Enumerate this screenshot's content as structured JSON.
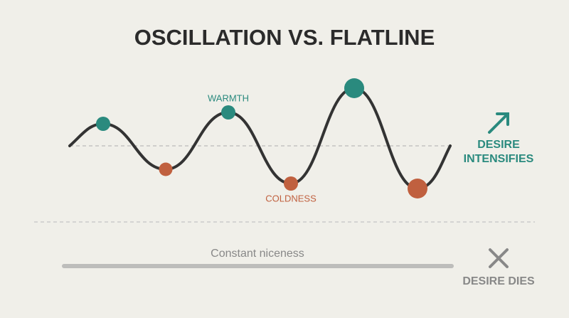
{
  "header": {
    "title": "OSCILLATION VS. FLATLINE"
  },
  "oscillation": {
    "peak_label": "WARMTH",
    "trough_label": "COLDNESS",
    "outcome_lines": [
      "DESIRE",
      "INTENSIFIES"
    ]
  },
  "flatline": {
    "label": "Constant niceness",
    "outcome": "DESIRE DIES"
  }
}
